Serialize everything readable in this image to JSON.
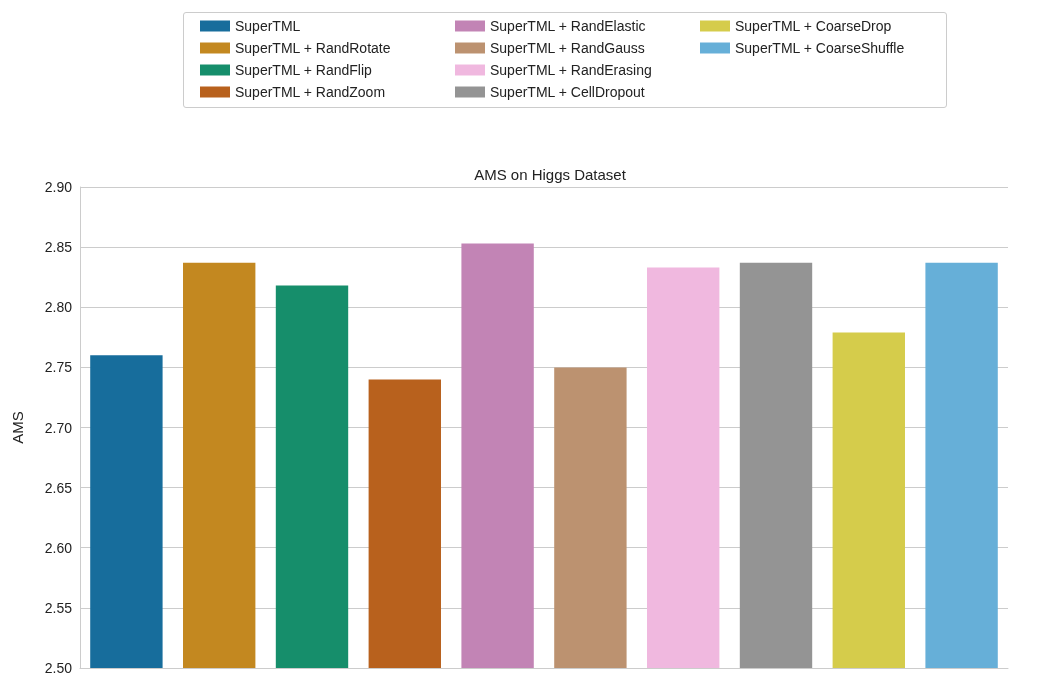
{
  "chart_data": {
    "type": "bar",
    "title": "AMS on Higgs Dataset",
    "ylabel": "AMS",
    "categories": [
      null,
      null,
      null,
      null,
      null,
      null,
      null,
      null,
      null,
      null
    ],
    "series": [
      {
        "name": "SuperTML",
        "color": "#176d9c",
        "values": [
          2.76,
          null,
          null,
          null,
          null,
          null,
          null,
          null,
          null,
          null
        ]
      },
      {
        "name": "SuperTML + RandRotate",
        "color": "#c38820",
        "values": [
          null,
          2.837,
          null,
          null,
          null,
          null,
          null,
          null,
          null,
          null
        ]
      },
      {
        "name": "SuperTML + RandFlip",
        "color": "#168e6b",
        "values": [
          null,
          null,
          2.818,
          null,
          null,
          null,
          null,
          null,
          null,
          null
        ]
      },
      {
        "name": "SuperTML + RandZoom",
        "color": "#b8611d",
        "values": [
          null,
          null,
          null,
          2.74,
          null,
          null,
          null,
          null,
          null,
          null
        ]
      },
      {
        "name": "SuperTML + RandElastic",
        "color": "#c284b5",
        "values": [
          null,
          null,
          null,
          null,
          2.853,
          null,
          null,
          null,
          null,
          null
        ]
      },
      {
        "name": "SuperTML + RandGauss",
        "color": "#bc9270",
        "values": [
          null,
          null,
          null,
          null,
          null,
          2.75,
          null,
          null,
          null,
          null
        ]
      },
      {
        "name": "SuperTML + RandErasing",
        "color": "#f0b8df",
        "values": [
          null,
          null,
          null,
          null,
          null,
          null,
          2.833,
          null,
          null,
          null
        ]
      },
      {
        "name": "SuperTML + CellDropout",
        "color": "#949494",
        "values": [
          null,
          null,
          null,
          null,
          null,
          null,
          null,
          2.837,
          null,
          null
        ]
      },
      {
        "name": "SuperTML + CoarseDrop",
        "color": "#d5cc4b",
        "values": [
          null,
          null,
          null,
          null,
          null,
          null,
          null,
          null,
          2.779,
          null
        ]
      },
      {
        "name": "SuperTML + CoarseShuffle",
        "color": "#66afd8",
        "values": [
          null,
          null,
          null,
          null,
          null,
          null,
          null,
          null,
          null,
          2.837
        ]
      }
    ],
    "ylim": [
      2.5,
      2.9
    ],
    "yticks": [
      {
        "value": 2.5,
        "label": "2.50"
      },
      {
        "value": 2.55,
        "label": "2.55"
      },
      {
        "value": 2.6,
        "label": "2.60"
      },
      {
        "value": 2.65,
        "label": "2.65"
      },
      {
        "value": 2.7,
        "label": "2.70"
      },
      {
        "value": 2.75,
        "label": "2.75"
      },
      {
        "value": 2.8,
        "label": "2.80"
      },
      {
        "value": 2.85,
        "label": "2.85"
      },
      {
        "value": 2.9,
        "label": "2.90"
      }
    ],
    "grid": "y",
    "legend": "top",
    "tick_labels": "y"
  }
}
